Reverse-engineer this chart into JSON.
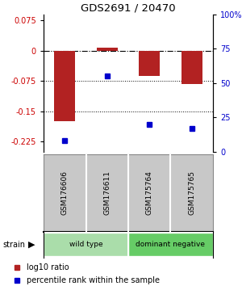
{
  "title": "GDS2691 / 20470",
  "samples": [
    "GSM176606",
    "GSM176611",
    "GSM175764",
    "GSM175765"
  ],
  "log10_ratio": [
    -0.175,
    0.008,
    -0.063,
    -0.082
  ],
  "percentile_rank": [
    8,
    55,
    20,
    17
  ],
  "ylim_left": [
    -0.25,
    0.09
  ],
  "ylim_right": [
    0,
    100
  ],
  "yticks_left": [
    0.075,
    0,
    -0.075,
    -0.15,
    -0.225
  ],
  "yticks_right": [
    100,
    75,
    50,
    25,
    0
  ],
  "bar_color": "#b22222",
  "dot_color": "#0000cc",
  "bar_width": 0.5,
  "groups": [
    {
      "label": "wild type",
      "samples": [
        0,
        1
      ],
      "color": "#aaddaa"
    },
    {
      "label": "dominant negative",
      "samples": [
        2,
        3
      ],
      "color": "#66cc66"
    }
  ],
  "strain_label": "strain",
  "legend_bar_label": "log10 ratio",
  "legend_dot_label": "percentile rank within the sample",
  "background_color": "#ffffff",
  "label_color_left": "#cc0000",
  "label_color_right": "#0000cc",
  "sample_box_color": "#c8c8c8",
  "sample_box_border": "#888888"
}
